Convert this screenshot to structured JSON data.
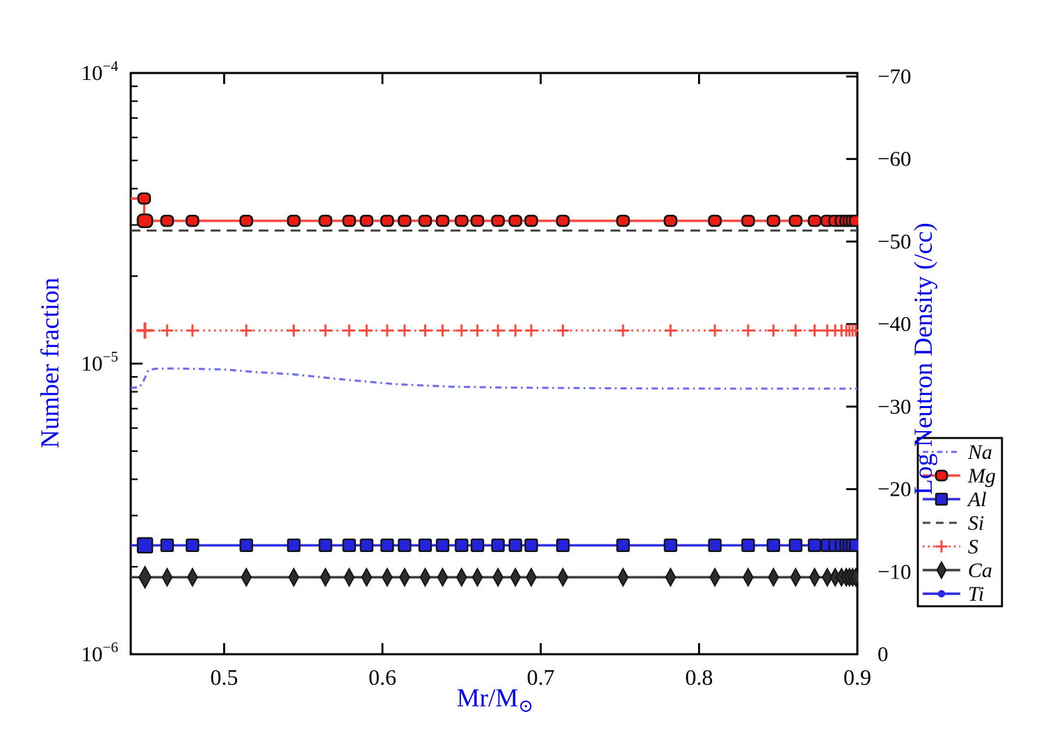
{
  "figure": {
    "background": "#ffffff",
    "axis_color": "#000000",
    "label_color": "#0202ee"
  },
  "chart_data": {
    "type": "line",
    "xlabel": "Mr/M",
    "xlabel_subscript": "⊙",
    "ylabel_left": "Number fraction",
    "ylabel_right": "Log Neutron Density (/cc)",
    "x_axis": {
      "min": 0.441,
      "max": 0.9,
      "tick_values": [
        0.5,
        0.6,
        0.7,
        0.8,
        0.9
      ],
      "tick_labels": [
        "0.5",
        "0.6",
        "0.7",
        "0.8",
        "0.9"
      ]
    },
    "y_axis_left": {
      "scale": "log",
      "min": 1e-06,
      "max": 0.0001,
      "tick_values": [
        0.0001,
        1e-05,
        1e-06
      ],
      "tick_label_base": "10",
      "tick_label_exponents": [
        "−4",
        "−5",
        "−6"
      ]
    },
    "y_axis_right": {
      "min": 0,
      "max": -70,
      "tick_values": [
        -70,
        -60,
        -50,
        -40,
        -30,
        -20,
        -10,
        0
      ],
      "tick_labels": [
        "−70",
        "−60",
        "−50",
        "−40",
        "−30",
        "−20",
        "−10",
        "0"
      ]
    },
    "marker_x": [
      0.45,
      0.464,
      0.48,
      0.514,
      0.544,
      0.564,
      0.579,
      0.59,
      0.603,
      0.614,
      0.627,
      0.638,
      0.65,
      0.66,
      0.673,
      0.684,
      0.694,
      0.714,
      0.752,
      0.782,
      0.81,
      0.831,
      0.847,
      0.861,
      0.873,
      0.881,
      0.886,
      0.89,
      0.893,
      0.895,
      0.897,
      0.899
    ],
    "series": [
      {
        "name": "Na",
        "color": "#6b6bf0",
        "style": "dashdot",
        "marker": "none",
        "points": [
          [
            0.441,
            8.25e-06
          ],
          [
            0.4465,
            8.3e-06
          ],
          [
            0.449,
            8.7e-06
          ],
          [
            0.452,
            9.45e-06
          ],
          [
            0.456,
            9.6e-06
          ],
          [
            0.47,
            9.62e-06
          ],
          [
            0.5,
            9.55e-06
          ],
          [
            0.52,
            9.35e-06
          ],
          [
            0.542,
            9.2e-06
          ],
          [
            0.577,
            8.8e-06
          ],
          [
            0.608,
            8.5e-06
          ],
          [
            0.643,
            8.33e-06
          ],
          [
            0.68,
            8.27e-06
          ],
          [
            0.75,
            8.22e-06
          ],
          [
            0.82,
            8.2e-06
          ],
          [
            0.9,
            8.2e-06
          ]
        ]
      },
      {
        "name": "Mg",
        "color": "#f84b42",
        "style": "solid",
        "marker": "rounded-square",
        "marker_fill": "#ea1c14",
        "value": 3.1e-05,
        "initial_value": 3.7e-05,
        "step_x": 0.4495
      },
      {
        "name": "Al",
        "color": "#3030e4",
        "style": "solid",
        "marker": "square",
        "marker_fill": "#2424dc",
        "value": 2.37e-06
      },
      {
        "name": "Si",
        "color": "#454545",
        "style": "dashed",
        "marker": "none",
        "value": 2.87e-05
      },
      {
        "name": "S",
        "color": "#f84b42",
        "style": "dotted",
        "marker": "plus",
        "value": 1.3e-05
      },
      {
        "name": "Ca",
        "color": "#3f3f3f",
        "style": "solid",
        "marker": "diamond",
        "marker_fill": "#2d2d2d",
        "value": 1.84e-06
      },
      {
        "name": "Ti",
        "color": "#2a2ae2",
        "style": "solid",
        "marker": "circle",
        "marker_fill": "#2a2ae2",
        "visible_in_plot": false
      }
    ]
  },
  "legend": {
    "order": [
      "Na",
      "Mg",
      "Al",
      "Si",
      "S",
      "Ca",
      "Ti"
    ]
  }
}
